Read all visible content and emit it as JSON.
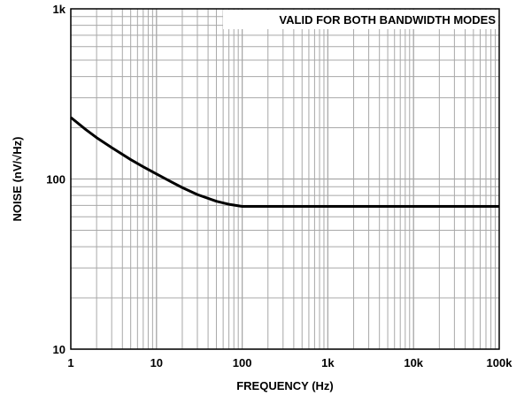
{
  "chart_data": {
    "type": "line",
    "title": "",
    "xlabel": "FREQUENCY (Hz)",
    "ylabel": "NOISE (nV/√Hz)",
    "x_scale": "log",
    "y_scale": "log",
    "xlim": [
      1,
      100000
    ],
    "ylim": [
      10,
      1000
    ],
    "x_ticks": [
      {
        "value": 1,
        "label": "1"
      },
      {
        "value": 10,
        "label": "10"
      },
      {
        "value": 100,
        "label": "100"
      },
      {
        "value": 1000,
        "label": "1k"
      },
      {
        "value": 10000,
        "label": "10k"
      },
      {
        "value": 100000,
        "label": "100k"
      }
    ],
    "y_ticks": [
      {
        "value": 10,
        "label": "10"
      },
      {
        "value": 100,
        "label": "100"
      },
      {
        "value": 1000,
        "label": "1k"
      }
    ],
    "grid": true,
    "annotation": "VALID FOR BOTH BANDWIDTH MODES",
    "series": [
      {
        "x": [
          1,
          1.5,
          2,
          3,
          5,
          7,
          10,
          15,
          20,
          30,
          50,
          70,
          100,
          150,
          200,
          300,
          500,
          1000,
          2000,
          5000,
          10000,
          20000,
          50000,
          100000
        ],
        "y": [
          230,
          195,
          175,
          153,
          130,
          118,
          107,
          96,
          89,
          81,
          74,
          71,
          69,
          69,
          69,
          69,
          69,
          69,
          69,
          69,
          69,
          69,
          69,
          69
        ]
      }
    ],
    "colors": {
      "line": "#000000",
      "grid": "#a8a8a8",
      "axes": "#000000",
      "background": "#ffffff"
    }
  }
}
